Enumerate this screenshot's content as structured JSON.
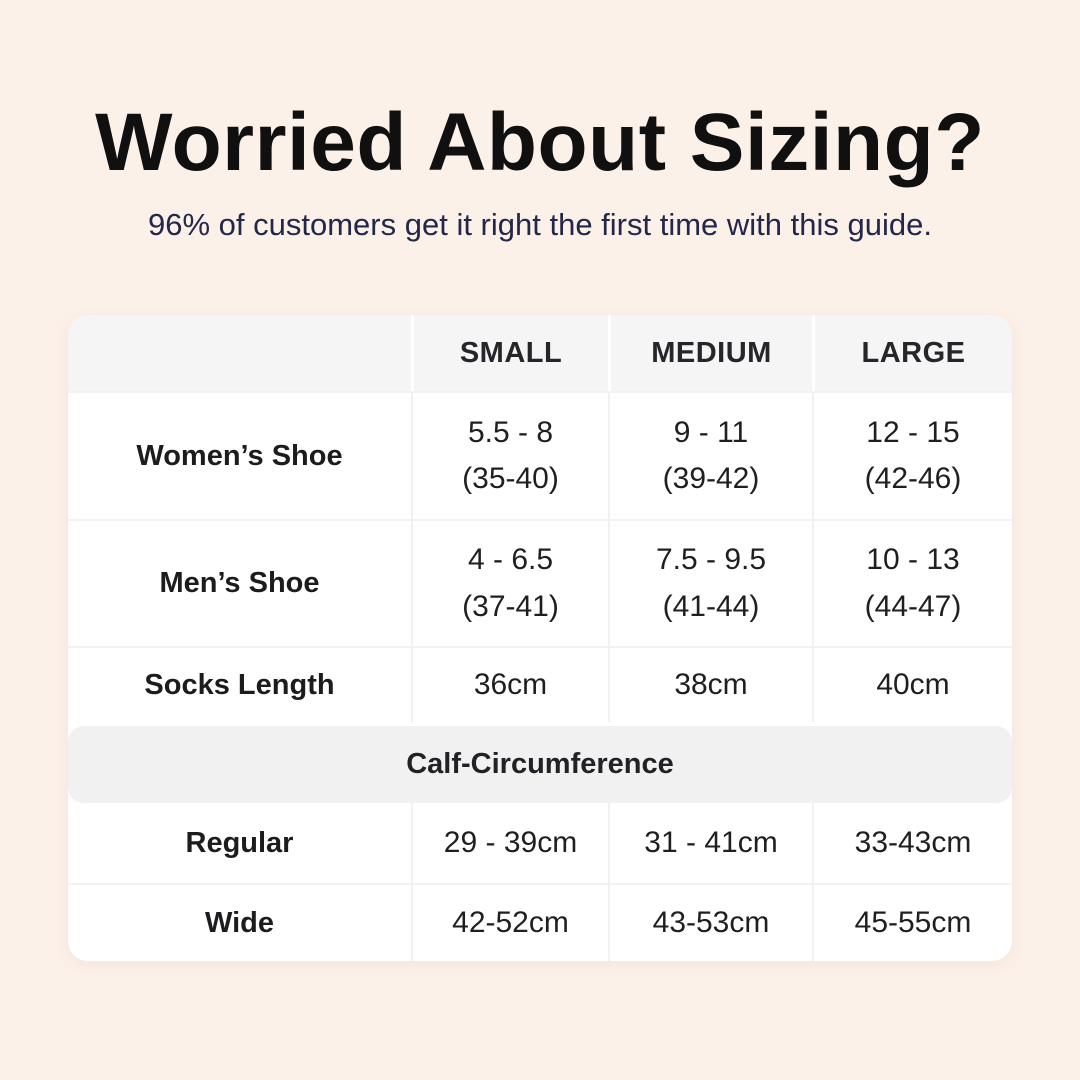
{
  "header": {
    "title": "Worried About Sizing?",
    "subtitle": "96% of customers get it right the first time with this guide."
  },
  "colors": {
    "page_background": "#FCF1E9",
    "card_background": "#FFFFFF",
    "header_cell_background": "#F5F5F6",
    "section_band_background": "#F1F1F2",
    "divider": "#F1F1F3",
    "title_text": "#101010",
    "subtitle_text": "#232749",
    "table_text": "#1F1F21"
  },
  "chart_data": {
    "type": "table",
    "title": "Worried About Sizing?",
    "subtitle": "96% of customers get it right the first time with this guide.",
    "columns": [
      "",
      "SMALL",
      "MEDIUM",
      "LARGE"
    ],
    "rows": [
      {
        "label": "Women’s Shoe",
        "cells": [
          "5.5 - 8\n(35-40)",
          "9 - 11\n(39-42)",
          "12 - 15\n(42-46)"
        ]
      },
      {
        "label": "Men’s Shoe",
        "cells": [
          "4 - 6.5\n(37-41)",
          "7.5 - 9.5\n(41-44)",
          "10 - 13\n(44-47)"
        ]
      },
      {
        "label": "Socks Length",
        "cells": [
          "36cm",
          "38cm",
          "40cm"
        ]
      }
    ],
    "section_header": "Calf-Circumference",
    "section_rows": [
      {
        "label": "Regular",
        "cells": [
          "29 - 39cm",
          "31 - 41cm",
          "33-43cm"
        ]
      },
      {
        "label": "Wide",
        "cells": [
          "42-52cm",
          "43-53cm",
          "45-55cm"
        ]
      }
    ]
  }
}
